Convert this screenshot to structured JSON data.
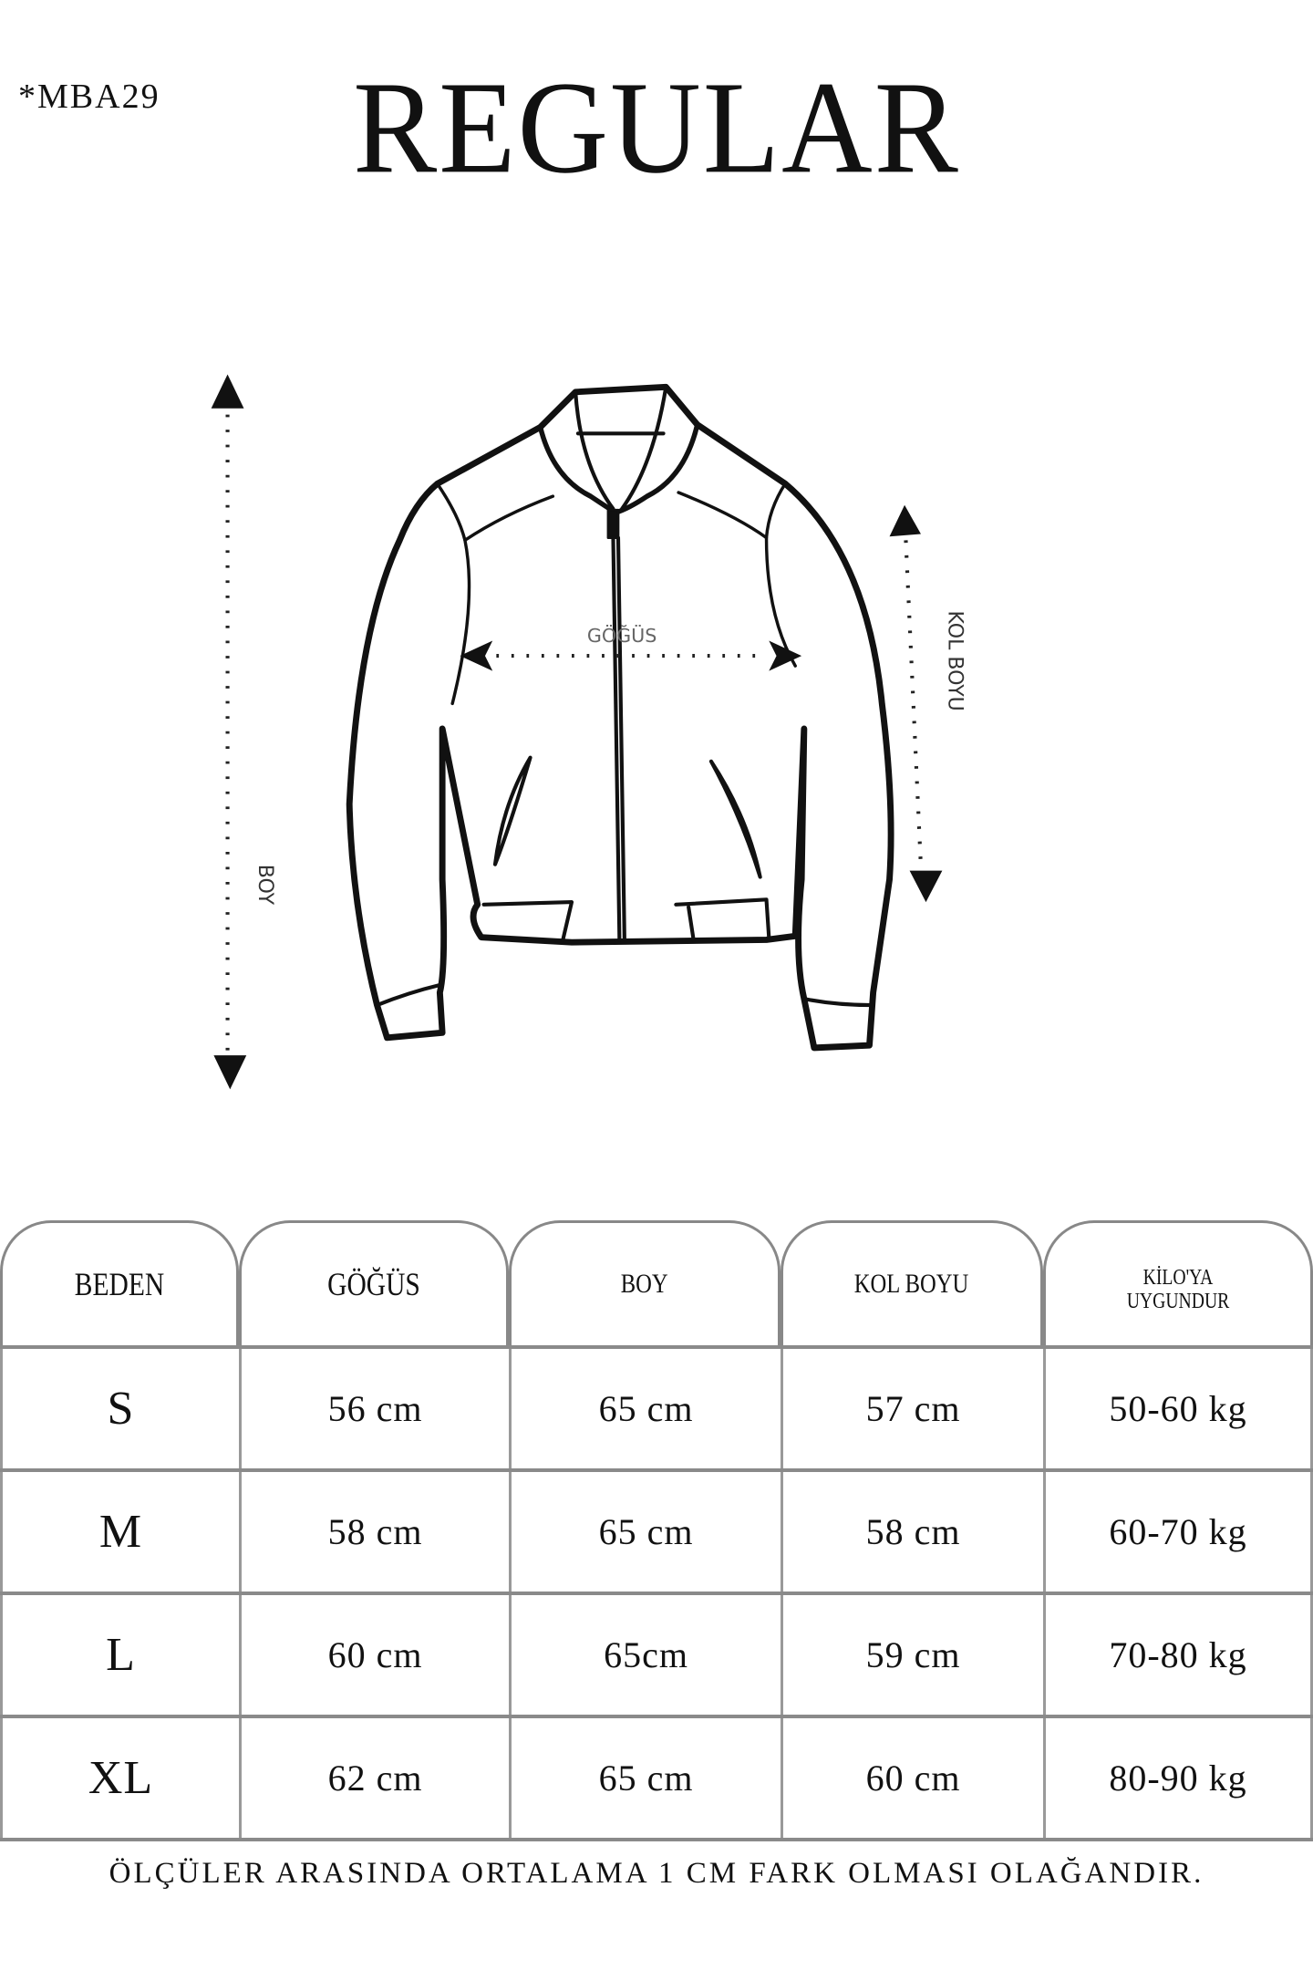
{
  "product_code": "*MBA29",
  "fit_title": "REGULAR",
  "diagram": {
    "length_label": "BOY",
    "chest_label": "GÖĞÜS",
    "sleeve_label": "KOL BOYU"
  },
  "size_table": {
    "headers": [
      "BEDEN",
      "GÖĞÜS",
      "BOY",
      "KOL BOYU",
      "KİLO'YA UYGUNDUR"
    ],
    "rows": [
      [
        "S",
        "56 cm",
        "65 cm",
        "57  cm",
        "50-60 kg"
      ],
      [
        "M",
        "58 cm",
        "65 cm",
        "58 cm",
        "60-70 kg"
      ],
      [
        "L",
        "60 cm",
        "65cm",
        "59 cm",
        "70-80 kg"
      ],
      [
        "XL",
        "62 cm",
        "65 cm",
        "60 cm",
        "80-90 kg"
      ]
    ]
  },
  "footnote": "ÖLÇÜLER ARASINDA ORTALAMA 1 CM FARK OLMASI OLAĞANDIR."
}
